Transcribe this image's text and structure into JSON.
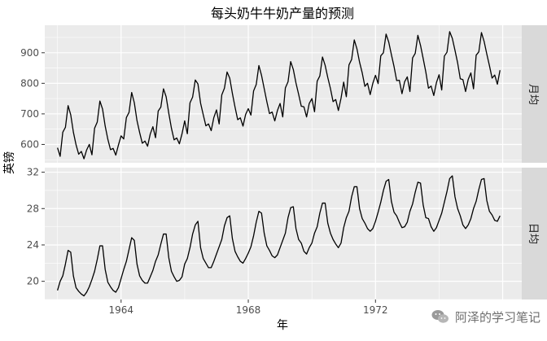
{
  "chart_data": {
    "type": "line",
    "title": "每头奶牛牛奶产量的预测",
    "xlabel": "年",
    "ylabel": "英镑",
    "x_ticks": [
      "1964",
      "1968",
      "1972"
    ],
    "x_range": [
      1961.6,
      1976.6
    ],
    "start": 1962.0,
    "step": 0.08333,
    "line_color": "#000000",
    "panel_bg": "#ebebeb",
    "strip_bg": "#d9d9d9",
    "grid_color": "#ffffff",
    "facets": [
      {
        "strip_label": "月均",
        "ylim": [
          540,
          990
        ],
        "y_ticks": [
          600,
          700,
          800,
          900
        ],
        "values": [
          589,
          561,
          640,
          656,
          727,
          697,
          640,
          599,
          568,
          577,
          553,
          582,
          600,
          566,
          653,
          673,
          742,
          716,
          660,
          617,
          583,
          587,
          565,
          598,
          628,
          618,
          688,
          705,
          770,
          736,
          678,
          639,
          604,
          611,
          594,
          634,
          658,
          622,
          709,
          722,
          782,
          756,
          702,
          653,
          615,
          621,
          602,
          635,
          677,
          635,
          736,
          755,
          811,
          798,
          735,
          697,
          661,
          667,
          645,
          688,
          713,
          667,
          762,
          784,
          837,
          817,
          767,
          722,
          681,
          687,
          660,
          698,
          717,
          696,
          775,
          796,
          858,
          826,
          783,
          740,
          701,
          706,
          677,
          711,
          734,
          690,
          785,
          805,
          871,
          845,
          801,
          764,
          725,
          723,
          690,
          734,
          750,
          707,
          807,
          824,
          886,
          859,
          819,
          783,
          740,
          747,
          711,
          751,
          804,
          756,
          860,
          878,
          942,
          913,
          869,
          834,
          790,
          800,
          763,
          800,
          826,
          799,
          890,
          900,
          961,
          935,
          894,
          855,
          809,
          810,
          766,
          805,
          821,
          773,
          883,
          898,
          957,
          924,
          881,
          837,
          784,
          791,
          760,
          802,
          828,
          778,
          889,
          902,
          969,
          947,
          908,
          867,
          815,
          812,
          773,
          813,
          834,
          782,
          892,
          903,
          966,
          937,
          896,
          858,
          817,
          827,
          797,
          843
        ]
      },
      {
        "strip_label": "日均",
        "ylim": [
          18.0,
          32.5
        ],
        "y_ticks": [
          20,
          24,
          28,
          32
        ],
        "values": [
          19.0,
          20.0,
          20.6,
          21.9,
          23.4,
          23.2,
          20.6,
          19.3,
          18.9,
          18.6,
          18.4,
          18.8,
          19.4,
          20.2,
          21.1,
          22.4,
          23.9,
          23.9,
          21.3,
          19.9,
          19.4,
          19.0,
          18.8,
          19.3,
          20.3,
          21.3,
          22.2,
          23.5,
          24.8,
          24.5,
          21.9,
          20.6,
          20.1,
          19.8,
          19.8,
          20.5,
          21.2,
          22.2,
          22.9,
          24.1,
          25.2,
          25.2,
          22.6,
          21.1,
          20.5,
          20.0,
          20.1,
          20.5,
          21.9,
          22.5,
          23.7,
          25.2,
          26.2,
          26.6,
          23.7,
          22.5,
          22.0,
          21.5,
          21.5,
          22.2,
          23.0,
          23.8,
          24.6,
          26.1,
          27.0,
          27.2,
          24.7,
          23.3,
          22.7,
          22.2,
          22.0,
          22.5,
          23.1,
          23.8,
          25.0,
          26.5,
          27.7,
          27.5,
          25.3,
          23.9,
          23.4,
          22.8,
          22.6,
          22.9,
          23.7,
          24.5,
          25.3,
          27.0,
          28.1,
          28.2,
          25.8,
          24.6,
          24.2,
          23.3,
          23.0,
          23.7,
          24.2,
          25.3,
          26.0,
          27.5,
          28.6,
          28.6,
          26.4,
          25.3,
          24.6,
          24.1,
          23.7,
          24.2,
          25.9,
          27.0,
          27.7,
          29.3,
          30.4,
          30.4,
          28.0,
          26.9,
          26.4,
          25.8,
          25.5,
          25.8,
          26.6,
          27.6,
          28.7,
          30.0,
          31.0,
          31.2,
          28.8,
          27.6,
          27.2,
          26.5,
          25.9,
          26.0,
          26.5,
          27.7,
          28.5,
          29.8,
          30.9,
          30.8,
          28.4,
          27.0,
          26.9,
          26.0,
          25.5,
          25.9,
          26.7,
          27.5,
          28.7,
          29.9,
          31.3,
          31.6,
          29.3,
          28.0,
          27.2,
          26.2,
          25.8,
          26.2,
          26.9,
          28.0,
          28.8,
          30.1,
          31.2,
          31.3,
          28.9,
          27.7,
          27.3,
          26.7,
          26.6,
          27.2
        ]
      }
    ]
  },
  "watermark": {
    "text": "阿泽的学习笔记",
    "icon": "wechat-icon"
  }
}
